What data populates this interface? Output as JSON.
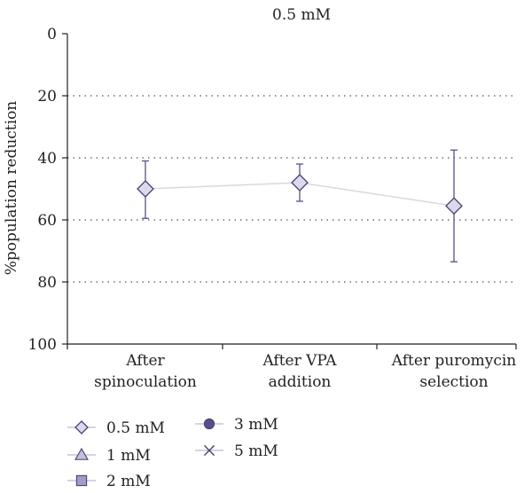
{
  "chart_data": {
    "type": "line",
    "title": "0.5 mM",
    "ylabel": "%population reduction",
    "xlabel": "",
    "y_inverted": true,
    "ylim": [
      0,
      100
    ],
    "yticks": [
      0,
      20,
      40,
      60,
      80,
      100
    ],
    "grid": "horizontal dotted",
    "categories": [
      [
        "After",
        "spinoculation"
      ],
      [
        "After VPA",
        "addition"
      ],
      [
        "After puromycin",
        "selection"
      ]
    ],
    "series": [
      {
        "name": "0.5 mM",
        "marker": "diamond",
        "values": [
          50,
          48,
          55.5
        ],
        "error_low": [
          41,
          42,
          37.5
        ],
        "error_high": [
          59.5,
          54,
          73.5
        ]
      }
    ],
    "legend": {
      "placement": "bottom-left",
      "entries": [
        {
          "label": "0.5 mM",
          "marker": "diamond"
        },
        {
          "label": "1 mM",
          "marker": "triangle"
        },
        {
          "label": "2 mM",
          "marker": "square"
        },
        {
          "label": "3 mM",
          "marker": "circle"
        },
        {
          "label": "5 mM",
          "marker": "cross"
        }
      ]
    },
    "colors": {
      "marker_fill": "#dcd8ee",
      "marker_stroke": "#4a4070",
      "line": "#d8d8e0",
      "error_bar": "#5a4e8a",
      "legend_line": "#c8c4dc",
      "circle_fill": "#5a4e8a",
      "grid": "#555555"
    }
  }
}
